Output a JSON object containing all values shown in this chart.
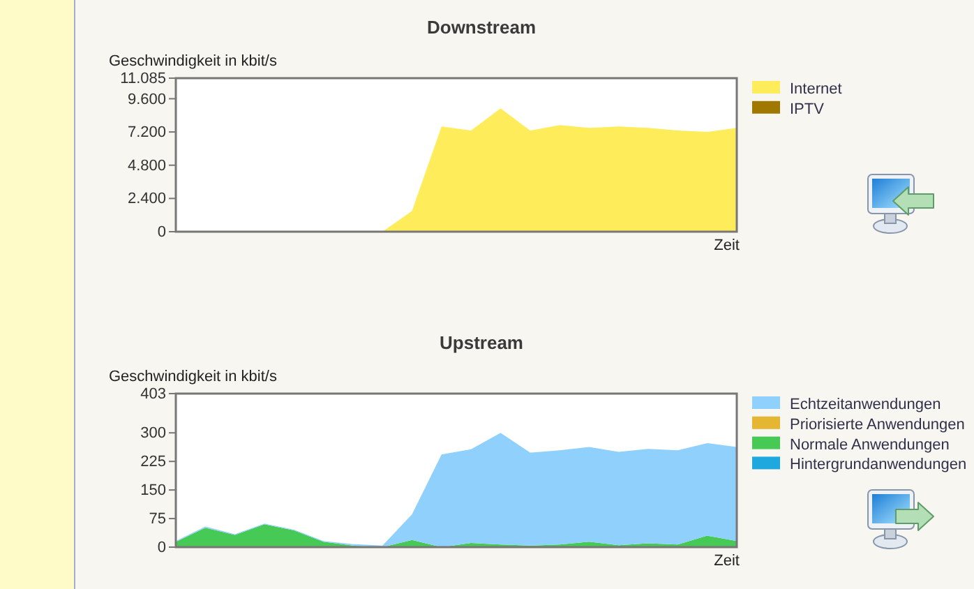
{
  "chart_data": [
    {
      "type": "area",
      "title": "Downstream",
      "ylabel": "Geschwindigkeit in kbit/s",
      "xlabel": "Zeit",
      "stacked": true,
      "legend": "right",
      "tick_labels": "y",
      "categories": [
        null,
        null,
        null,
        null,
        null,
        null,
        null,
        null,
        null,
        null,
        null,
        null,
        null,
        null,
        null,
        null,
        null,
        null,
        null,
        null
      ],
      "series": [
        {
          "name": "IPTV",
          "color": "#a07800",
          "values": [
            null,
            null,
            null,
            null,
            null,
            null,
            null,
            null,
            null,
            null,
            null,
            null,
            null,
            null,
            null,
            null,
            null,
            null,
            null,
            null
          ]
        },
        {
          "name": "Internet",
          "color": "#ffec5a",
          "values": [
            0,
            0,
            0,
            0,
            0,
            0,
            0,
            0,
            1500,
            7600,
            7300,
            8900,
            7300,
            7700,
            7500,
            7600,
            7500,
            7300,
            7200,
            7500
          ]
        }
      ],
      "ylim": [
        0,
        11085
      ],
      "yticks": [
        0,
        {
          "value": 2400,
          "label": "2.400"
        },
        {
          "value": 4800,
          "label": "4.800"
        },
        {
          "value": 7200,
          "label": "7.200"
        },
        {
          "value": 9600,
          "label": "9.600"
        },
        {
          "value": 11085,
          "label": "11.085"
        }
      ]
    },
    {
      "type": "area",
      "title": "Upstream",
      "ylabel": "Geschwindigkeit in kbit/s",
      "xlabel": "Zeit",
      "stacked": true,
      "legend": "right",
      "tick_labels": "y",
      "categories": [
        null,
        null,
        null,
        null,
        null,
        null,
        null,
        null,
        null,
        null,
        null,
        null,
        null,
        null,
        null,
        null,
        null,
        null,
        null,
        null
      ],
      "series": [
        {
          "name": "Hintergrundanwendungen",
          "color": "#1ea8de",
          "values": [
            null,
            null,
            null,
            null,
            null,
            null,
            null,
            null,
            null,
            null,
            null,
            null,
            null,
            null,
            null,
            null,
            null,
            null,
            null,
            null
          ]
        },
        {
          "name": "Normale Anwendungen",
          "color": "#47c955",
          "values": [
            14,
            51,
            32,
            60,
            44,
            14,
            4,
            0,
            19,
            0,
            11,
            7,
            4,
            7,
            14,
            5,
            10,
            7,
            30,
            16
          ]
        },
        {
          "name": "Priorisierte Anwendungen",
          "color": "#e5b632",
          "values": [
            null,
            null,
            null,
            null,
            null,
            null,
            null,
            null,
            null,
            null,
            null,
            null,
            null,
            null,
            null,
            null,
            null,
            null,
            null,
            null
          ]
        },
        {
          "name": "Echtzeitanwendungen",
          "color": "#8fd0fd",
          "values": [
            2,
            3,
            2,
            2,
            2,
            2,
            4,
            4,
            67,
            243,
            246,
            293,
            244,
            247,
            249,
            245,
            248,
            247,
            243,
            247
          ]
        }
      ],
      "ylim": [
        0,
        403
      ],
      "yticks": [
        0,
        75,
        150,
        225,
        300,
        403
      ]
    }
  ]
}
